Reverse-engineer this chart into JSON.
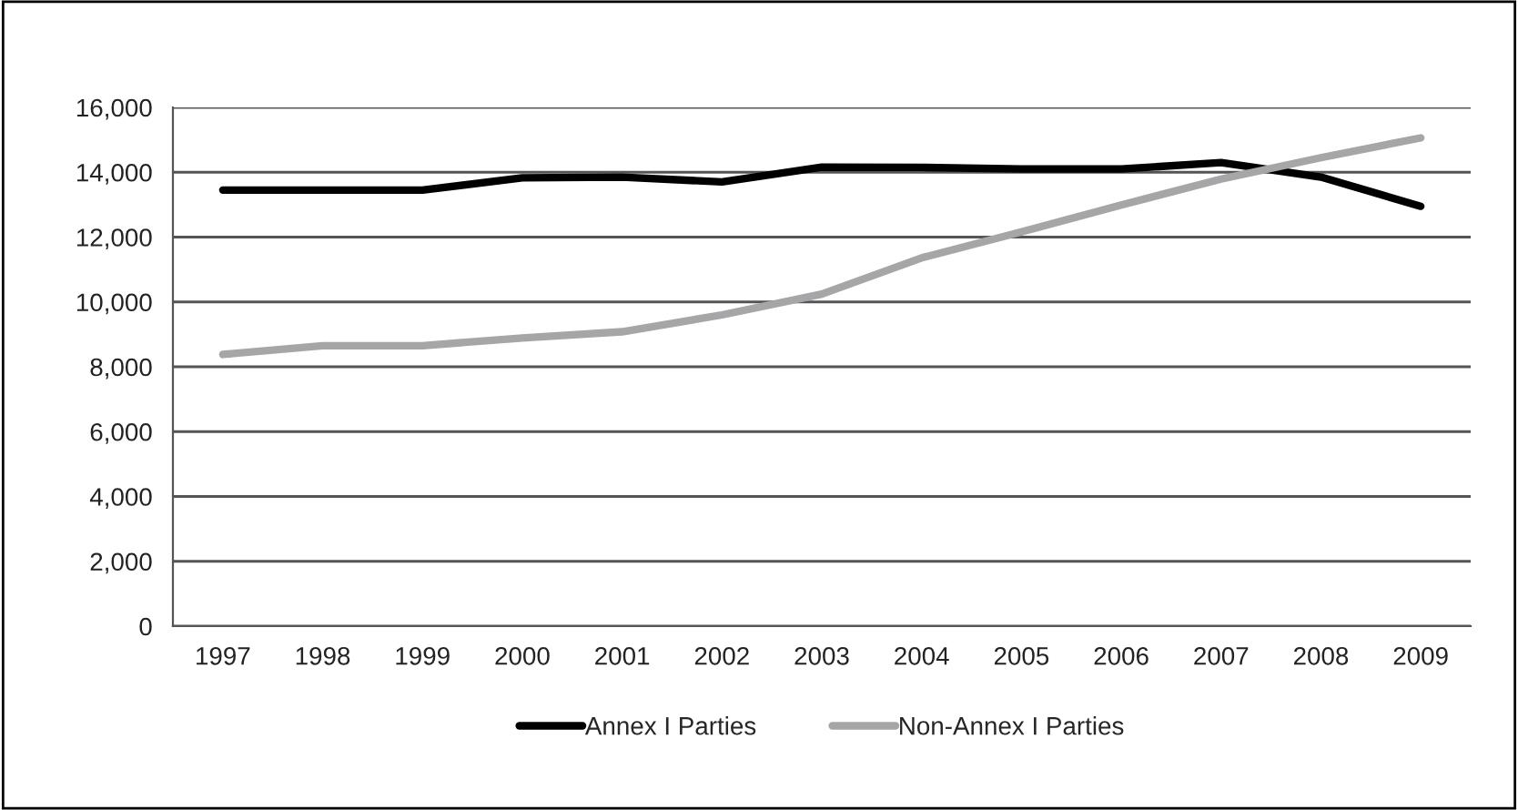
{
  "chart_data": {
    "type": "line",
    "categories": [
      "1997",
      "1998",
      "1999",
      "2000",
      "2001",
      "2002",
      "2003",
      "2004",
      "2005",
      "2006",
      "2007",
      "2008",
      "2009"
    ],
    "series": [
      {
        "name": "Annex I Parties",
        "color": "#000000",
        "values": [
          13450,
          13450,
          13450,
          13830,
          13850,
          13700,
          14160,
          14150,
          14100,
          14100,
          14300,
          13850,
          12950
        ]
      },
      {
        "name": "Non-Annex I Parties",
        "color": "#a6a6a9",
        "values": [
          8380,
          8650,
          8650,
          8890,
          9080,
          9600,
          10240,
          11360,
          12160,
          12990,
          13790,
          14450,
          15060
        ]
      }
    ],
    "ylim": [
      0,
      16000
    ],
    "yticks": [
      {
        "value": 0,
        "label": "0"
      },
      {
        "value": 2000,
        "label": "2,000"
      },
      {
        "value": 4000,
        "label": "4,000"
      },
      {
        "value": 6000,
        "label": "6,000"
      },
      {
        "value": 8000,
        "label": "8,000"
      },
      {
        "value": 10000,
        "label": "10,000"
      },
      {
        "value": 12000,
        "label": "12,000"
      },
      {
        "value": 14000,
        "label": "14,000"
      },
      {
        "value": 16000,
        "label": "16,000"
      }
    ],
    "grid": "y",
    "legend": "bottom",
    "marker": "none",
    "line_style": "solid"
  }
}
